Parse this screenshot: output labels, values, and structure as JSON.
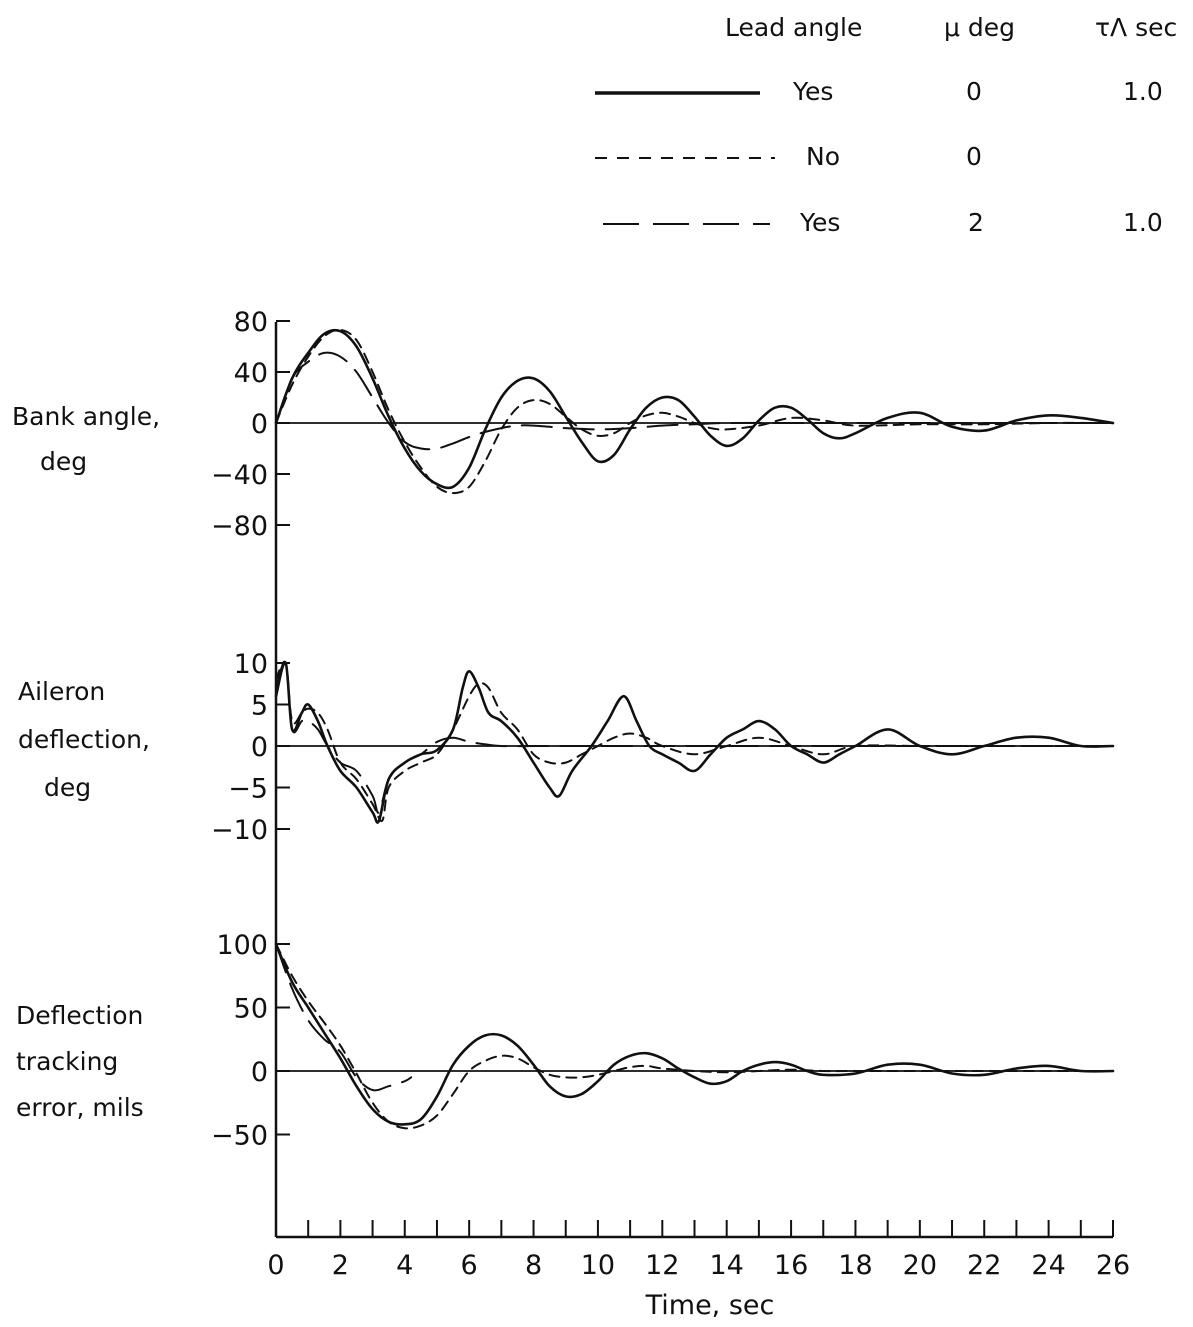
{
  "legend": {
    "headers": {
      "lead_angle": "Lead angle",
      "mu": "μ deg",
      "tau": "τΛ sec"
    },
    "rows": [
      {
        "style": "solid",
        "lead_angle": "Yes",
        "mu": "0",
        "tau": "1.0"
      },
      {
        "style": "dashed",
        "lead_angle": "No",
        "mu": "0",
        "tau": ""
      },
      {
        "style": "longdash",
        "lead_angle": "Yes",
        "mu": "2",
        "tau": "1.0"
      }
    ]
  },
  "chart_data": [
    {
      "type": "line",
      "ylabel": [
        "Bank angle,",
        "deg"
      ],
      "yticks": [
        80,
        40,
        0,
        -40,
        -80
      ],
      "yticklabels": [
        "80",
        "40",
        "0",
        "−40",
        "−80"
      ],
      "ylim": [
        -80,
        80
      ],
      "xlim": [
        0,
        26
      ],
      "series": [
        {
          "style": "solid",
          "x": [
            0,
            0.5,
            1,
            1.5,
            2,
            2.5,
            3,
            3.5,
            4,
            4.5,
            5,
            5.5,
            6,
            6.5,
            7,
            7.5,
            8,
            8.5,
            9,
            9.5,
            10,
            10.5,
            11,
            11.5,
            12,
            12.5,
            13,
            13.5,
            14,
            14.5,
            15,
            15.5,
            16,
            16.5,
            17,
            17.5,
            18,
            19,
            20,
            21,
            22,
            23,
            24,
            25,
            26
          ],
          "y": [
            0,
            35,
            55,
            70,
            72,
            60,
            35,
            5,
            -20,
            -38,
            -48,
            -50,
            -35,
            -5,
            20,
            33,
            35,
            25,
            5,
            -15,
            -30,
            -25,
            -5,
            12,
            20,
            18,
            5,
            -10,
            -18,
            -12,
            2,
            12,
            12,
            3,
            -8,
            -12,
            -8,
            4,
            8,
            -3,
            -6,
            2,
            6,
            4,
            0
          ]
        },
        {
          "style": "dashed",
          "x": [
            0,
            0.5,
            1,
            1.5,
            2,
            2.5,
            3,
            3.5,
            4,
            4.5,
            5,
            5.5,
            6,
            6.5,
            7,
            7.5,
            8,
            8.5,
            9,
            9.5,
            10,
            10.5,
            11,
            11.5,
            12,
            12.5,
            13,
            13.5,
            14,
            15,
            16,
            17,
            18,
            20,
            22,
            24,
            26
          ],
          "y": [
            0,
            30,
            52,
            68,
            73,
            65,
            40,
            10,
            -15,
            -35,
            -50,
            -55,
            -50,
            -30,
            -5,
            12,
            18,
            15,
            5,
            -5,
            -10,
            -8,
            0,
            6,
            8,
            5,
            0,
            -4,
            -5,
            -2,
            4,
            2,
            -2,
            -1,
            -1,
            0,
            0
          ]
        },
        {
          "style": "longdash",
          "x": [
            0,
            0.5,
            1,
            1.5,
            2,
            2.5,
            3,
            3.5,
            4,
            4.5,
            5,
            5.5,
            6,
            6.5,
            7,
            7.5,
            8,
            8.5,
            9,
            10,
            11,
            12,
            13,
            14,
            16,
            18,
            20,
            22,
            24,
            26
          ],
          "y": [
            0,
            35,
            48,
            55,
            52,
            40,
            20,
            0,
            -15,
            -20,
            -20,
            -16,
            -11,
            -7,
            -4,
            -2,
            -2,
            -3,
            -4,
            -5,
            -4,
            -2,
            -1,
            0,
            0,
            0,
            0,
            0,
            0,
            0
          ]
        }
      ]
    },
    {
      "type": "line",
      "ylabel": [
        "Aileron",
        "deflection,",
        "deg"
      ],
      "yticks": [
        10,
        5,
        0,
        -5,
        -10
      ],
      "yticklabels": [
        "10",
        "5",
        "0",
        "−5",
        "−10"
      ],
      "ylim": [
        -10,
        10
      ],
      "xlim": [
        0,
        26
      ],
      "series": [
        {
          "style": "solid",
          "x": [
            0,
            0.3,
            0.5,
            0.8,
            1,
            1.3,
            1.6,
            2,
            2.5,
            3,
            3.2,
            3.5,
            4,
            4.5,
            5,
            5.5,
            5.8,
            6,
            6.3,
            6.6,
            7,
            7.5,
            8,
            8.5,
            8.8,
            9.2,
            9.8,
            10.3,
            10.8,
            11.2,
            11.6,
            12,
            12.5,
            13,
            13.5,
            14,
            14.5,
            15,
            15.5,
            16,
            16.5,
            17,
            17.5,
            18,
            19,
            20,
            21,
            22,
            23,
            24,
            25,
            26
          ],
          "y": [
            6,
            10,
            2,
            4,
            5,
            3,
            0,
            -3,
            -5,
            -8,
            -9,
            -4,
            -2,
            -1,
            -0.5,
            2,
            7,
            9,
            7,
            4,
            3,
            1,
            -2,
            -5,
            -6,
            -3,
            0,
            3,
            6,
            3,
            0,
            -1,
            -2,
            -3,
            -1,
            1,
            2,
            3,
            2,
            0,
            -1,
            -2,
            -1,
            0,
            2,
            0,
            -1,
            0,
            1,
            1,
            0,
            0
          ]
        },
        {
          "style": "dashed",
          "x": [
            0,
            0.3,
            0.5,
            0.8,
            1,
            1.3,
            1.6,
            2,
            2.5,
            3,
            3.3,
            3.5,
            4,
            4.5,
            5,
            5.5,
            6,
            6.3,
            6.6,
            7,
            7.5,
            8,
            8.5,
            9,
            9.5,
            10,
            10.5,
            11,
            11.5,
            12,
            13,
            14,
            15,
            16,
            17,
            18,
            20,
            22,
            24,
            26
          ],
          "y": [
            8,
            10,
            3,
            4,
            4.5,
            4,
            2,
            -2,
            -4,
            -7,
            -9,
            -5,
            -3,
            -2,
            -1,
            2,
            6,
            7.5,
            7,
            4,
            2,
            -1,
            -2,
            -2,
            -1,
            0,
            1,
            1.5,
            1,
            0,
            -1,
            0,
            1,
            0,
            -1,
            0,
            0,
            0,
            0,
            0
          ]
        },
        {
          "style": "longdash",
          "x": [
            0,
            0.3,
            0.5,
            0.8,
            1,
            1.3,
            1.6,
            2,
            2.5,
            3,
            3.2,
            3.5,
            4,
            4.5,
            5,
            5.5,
            6,
            6.5,
            7,
            8,
            9,
            10,
            12,
            14,
            16,
            18,
            20,
            22,
            24,
            26
          ],
          "y": [
            7,
            10,
            2,
            3,
            3,
            2,
            0,
            -2,
            -3,
            -6,
            -8,
            -4,
            -2,
            -1,
            0.5,
            1,
            0.5,
            0.2,
            0,
            0,
            0,
            0,
            0,
            0,
            0,
            0,
            0,
            0,
            0,
            0
          ]
        }
      ]
    },
    {
      "type": "line",
      "ylabel": [
        "Deflection",
        "tracking",
        "error, mils"
      ],
      "yticks": [
        100,
        50,
        0,
        -50
      ],
      "yticklabels": [
        "100",
        "50",
        "0",
        "−50"
      ],
      "ylim": [
        -50,
        100
      ],
      "xlim": [
        0,
        26
      ],
      "xlabel": "Time, sec",
      "xticks": [
        0,
        2,
        4,
        6,
        8,
        10,
        12,
        14,
        16,
        18,
        20,
        22,
        24,
        26
      ],
      "xticklabels": [
        "0",
        "2",
        "4",
        "6",
        "8",
        "10",
        "12",
        "14",
        "16",
        "18",
        "20",
        "22",
        "24",
        "26"
      ],
      "series": [
        {
          "style": "solid",
          "x": [
            0,
            0.5,
            1,
            1.5,
            2,
            2.5,
            3,
            3.5,
            4,
            4.5,
            5,
            5.5,
            6,
            6.5,
            7,
            7.5,
            8,
            8.5,
            9,
            9.5,
            10,
            10.5,
            11,
            11.5,
            12,
            12.5,
            13,
            13.5,
            14,
            14.5,
            15,
            15.5,
            16,
            16.5,
            17,
            18,
            19,
            20,
            21,
            22,
            23,
            24,
            25,
            26
          ],
          "y": [
            100,
            70,
            50,
            30,
            10,
            -12,
            -30,
            -40,
            -42,
            -38,
            -20,
            5,
            20,
            28,
            28,
            20,
            5,
            -12,
            -20,
            -18,
            -8,
            5,
            12,
            14,
            10,
            2,
            -5,
            -10,
            -8,
            0,
            5,
            7,
            5,
            0,
            -3,
            -2,
            5,
            5,
            -2,
            -3,
            2,
            4,
            0,
            0
          ]
        },
        {
          "style": "dashed",
          "x": [
            0,
            0.5,
            1,
            1.5,
            2,
            2.5,
            3,
            3.5,
            4,
            4.5,
            5,
            5.5,
            6,
            6.5,
            7,
            7.5,
            8,
            8.5,
            9,
            9.5,
            10,
            10.5,
            11,
            11.5,
            12,
            13,
            14,
            15,
            16,
            17,
            18,
            20,
            22,
            24,
            26
          ],
          "y": [
            100,
            75,
            55,
            38,
            20,
            -2,
            -25,
            -40,
            -45,
            -43,
            -35,
            -18,
            0,
            8,
            12,
            10,
            3,
            -3,
            -5,
            -5,
            -3,
            0,
            3,
            4,
            2,
            0,
            -1,
            0,
            1,
            0,
            0,
            0,
            0,
            0,
            0
          ]
        },
        {
          "style": "longdash",
          "x": [
            0,
            0.5,
            1,
            1.5,
            2,
            2.5,
            3,
            3.5,
            4,
            4.2
          ],
          "y": [
            100,
            65,
            40,
            25,
            15,
            -5,
            -15,
            -12,
            -8,
            -5
          ]
        }
      ]
    }
  ]
}
